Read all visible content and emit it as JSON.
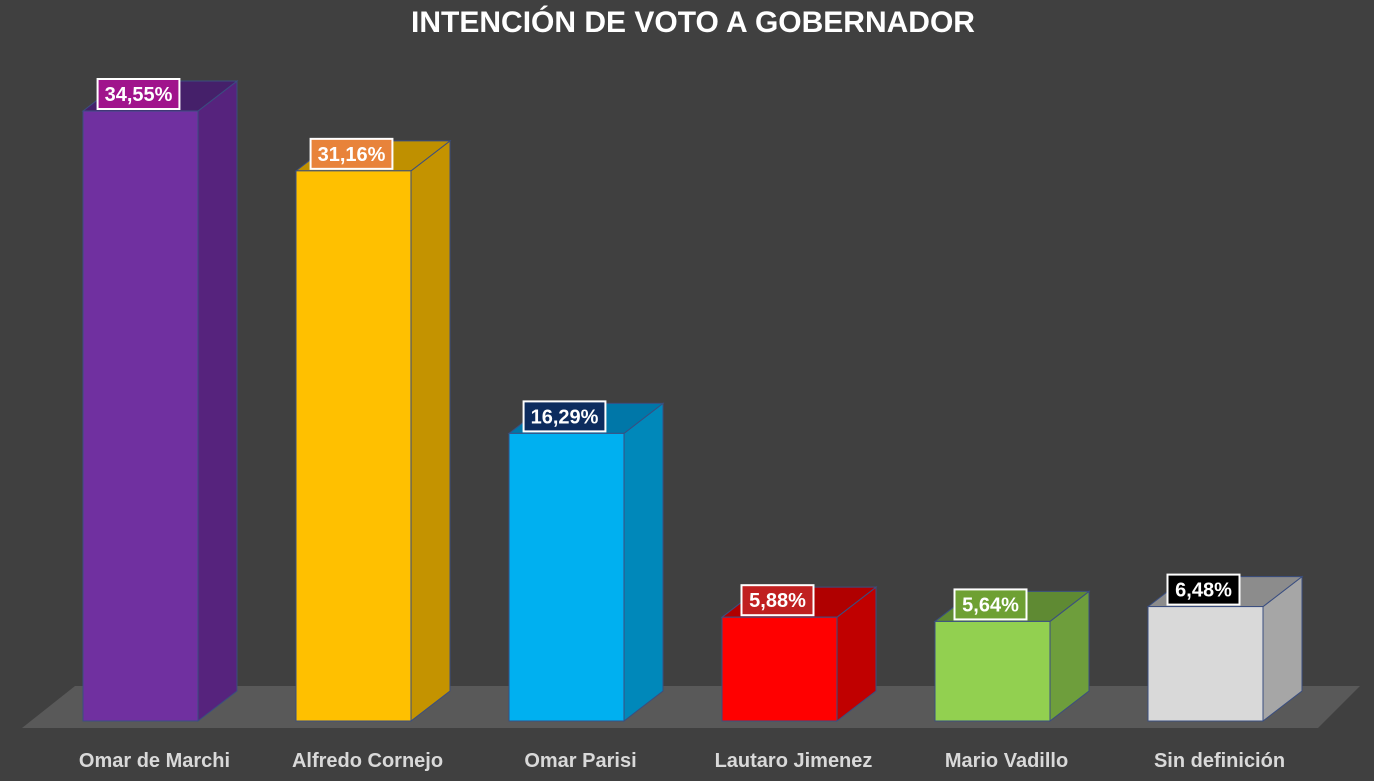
{
  "chart_data": {
    "type": "bar",
    "title": "INTENCIÓN DE VOTO A GOBERNADOR",
    "categories": [
      "Omar de Marchi",
      "Alfredo Cornejo",
      "Omar Parisi",
      "Lautaro Jimenez",
      "Mario Vadillo",
      "Sin definición"
    ],
    "values": [
      34.55,
      31.16,
      16.29,
      5.88,
      5.64,
      6.48
    ],
    "data_labels": [
      "34,55%",
      "31,16%",
      "16,29%",
      "5,88%",
      "5,64%",
      "6,48%"
    ],
    "xlabel": "",
    "ylabel": "",
    "ylim": [
      0,
      35
    ],
    "grid": false,
    "legend": "none",
    "style": "3d-column",
    "colors": {
      "background": "#404040",
      "floor": "#595959",
      "title": "#ffffff",
      "category_label": "#d9d9d9",
      "bars": [
        {
          "front": "#7030a0",
          "side": "#56237d",
          "top": "#45206a"
        },
        {
          "front": "#ffc000",
          "side": "#c49300",
          "top": "#bf9000"
        },
        {
          "front": "#00b0f0",
          "side": "#0088ba",
          "top": "#0077a8"
        },
        {
          "front": "#ff0000",
          "side": "#c00000",
          "top": "#b00000"
        },
        {
          "front": "#92d050",
          "side": "#6e9e3c",
          "top": "#5f8a33"
        },
        {
          "front": "#d9d9d9",
          "side": "#a6a6a6",
          "top": "#8c8c8c"
        }
      ],
      "label_boxes": [
        "#a0148c",
        "#e8833a",
        "#0d2c5e",
        "#c02020",
        "#6ea033",
        "#000000"
      ]
    }
  }
}
